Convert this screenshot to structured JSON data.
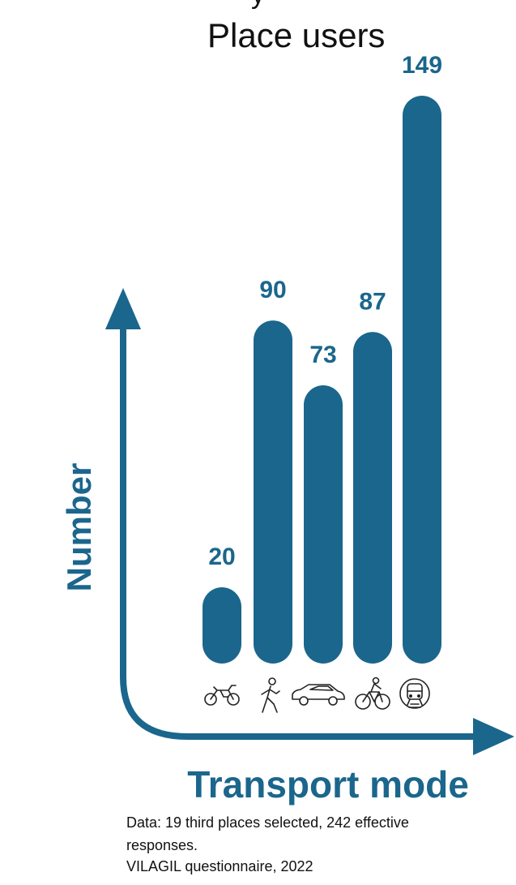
{
  "chart_data": {
    "type": "bar",
    "title_partial": "y",
    "title": "Place users",
    "xlabel": "Transport mode",
    "ylabel": "Number",
    "categories": [
      "motorcycle",
      "walking",
      "car",
      "bicycle",
      "public transport"
    ],
    "values": [
      20,
      90,
      73,
      87,
      149
    ],
    "data_labels": [
      "20",
      "90",
      "73",
      "87",
      "149"
    ],
    "ylim": [
      0,
      149
    ],
    "grid": false,
    "legend": "none",
    "colors": {
      "bar": "#1b668c",
      "label": "#1b668c",
      "axis": "#1b668c"
    }
  },
  "icons": [
    "motorcycle-icon",
    "walking-person-icon",
    "car-icon",
    "bicycle-icon",
    "train-icon"
  ],
  "source_note": {
    "line1": "Data: 19 third places selected, 242 effective",
    "line2": "responses.",
    "line3": "VILAGIL questionnaire, 2022"
  }
}
